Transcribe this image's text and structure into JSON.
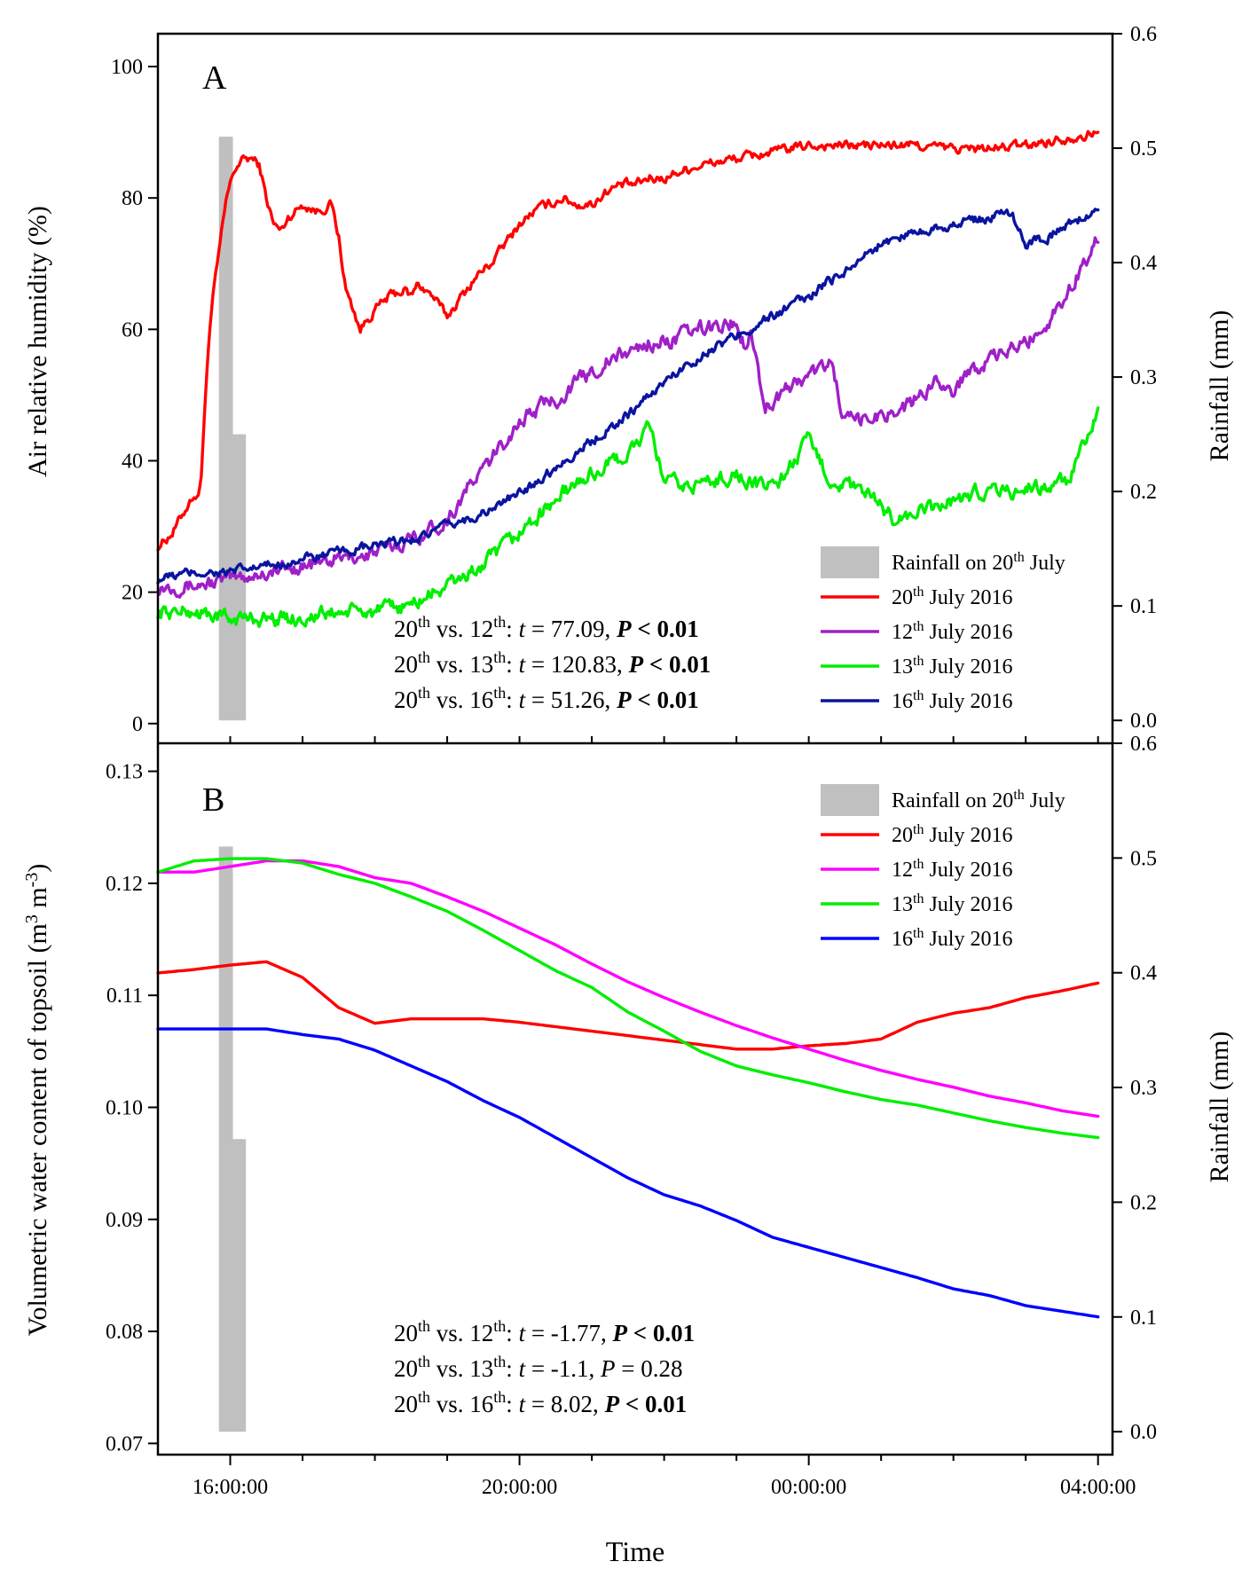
{
  "chart_data": [
    {
      "panel": "A",
      "type": "line",
      "ylabel": "Air relative humidity (%)",
      "ylim": [
        -3,
        105
      ],
      "yticks": [
        0,
        20,
        40,
        60,
        80,
        100
      ],
      "y2label": "Rainfall (mm)",
      "y2lim": [
        -0.02,
        0.6
      ],
      "y2ticks": [
        "0.0",
        "0.1",
        "0.2",
        "0.3",
        "0.4",
        "0.5",
        "0.6"
      ],
      "x_unit": "hours since 15:00 on 20 July",
      "xlim": [
        0,
        13.2
      ],
      "rainfall": {
        "name": "Rainfall on 20th July",
        "bars": [
          {
            "x": 0.88,
            "value": 0.51
          },
          {
            "x": 0.94,
            "value": 0.51
          },
          {
            "x": 1.0,
            "value": 0.51
          },
          {
            "x": 1.06,
            "value": 0.25
          },
          {
            "x": 1.12,
            "value": 0.25
          },
          {
            "x": 1.18,
            "value": 0.25
          }
        ]
      },
      "legend": [
        {
          "pre": "Rainfall on 20",
          "sup": "th",
          "post": " July",
          "kind": "bar",
          "color": "#c0c0c0"
        },
        {
          "pre": "20",
          "sup": "th",
          "post": " July 2016",
          "kind": "line",
          "color": "#ff0000"
        },
        {
          "pre": "12",
          "sup": "th",
          "post": " July 2016",
          "kind": "line",
          "color": "#a020c8"
        },
        {
          "pre": "13",
          "sup": "th",
          "post": " July 2016",
          "kind": "line",
          "color": "#00ee00"
        },
        {
          "pre": "16",
          "sup": "th",
          "post": " July 2016",
          "kind": "line",
          "color": "#0a14a0"
        }
      ],
      "series": [
        {
          "name": "20th July 2016",
          "color": "#ff0000",
          "x": [
            0,
            0.1,
            0.2,
            0.3,
            0.4,
            0.5,
            0.55,
            0.6,
            0.65,
            0.7,
            0.75,
            0.8,
            0.85,
            0.9,
            0.95,
            1.0,
            1.05,
            1.1,
            1.2,
            1.3,
            1.4,
            1.5,
            1.6,
            1.7,
            1.8,
            2.0,
            2.2,
            2.4,
            2.5,
            2.6,
            2.8,
            3.0,
            3.2,
            3.4,
            3.5,
            3.6,
            3.8,
            4.0,
            4.2,
            4.4,
            4.6,
            4.8,
            5.0,
            5.2,
            5.4,
            5.6,
            5.8,
            6.0,
            6.2,
            6.4,
            6.6,
            6.8,
            7.0,
            7.2,
            7.5,
            8.0,
            8.5,
            9.0,
            9.5,
            10.0,
            10.5,
            11.0,
            11.5,
            12.0,
            12.5,
            13.0
          ],
          "y": [
            27,
            28,
            29,
            31,
            33,
            35,
            34,
            38,
            48,
            58,
            64,
            68,
            72,
            76,
            80,
            82,
            84,
            85,
            86,
            86,
            85,
            80,
            76,
            75,
            77,
            79,
            78,
            79,
            74,
            66,
            60,
            63,
            65,
            66,
            65,
            67,
            65,
            62,
            65,
            68,
            70,
            73,
            76,
            78,
            79,
            80,
            79,
            79,
            81,
            82,
            82,
            83,
            83,
            84,
            85,
            86,
            87,
            88,
            88,
            88,
            88,
            87.5,
            87.5,
            88,
            89,
            90
          ],
          "amp": 0.5
        },
        {
          "name": "12th July 2016",
          "color": "#a020c8",
          "x": [
            0,
            0.5,
            1.0,
            1.5,
            2.0,
            2.5,
            3.0,
            3.5,
            4.0,
            4.3,
            4.6,
            5.0,
            5.4,
            5.6,
            5.8,
            6.2,
            6.6,
            6.8,
            7.0,
            7.5,
            8.0,
            8.1,
            8.2,
            8.4,
            8.7,
            9.0,
            9.3,
            9.5,
            9.7,
            10.0,
            10.3,
            10.6,
            10.8,
            11.0,
            11.2,
            11.5,
            11.8,
            12.0,
            12.3,
            12.6,
            13.0
          ],
          "y": [
            21,
            21,
            22,
            23,
            24,
            25,
            26,
            28,
            31,
            36,
            40,
            46,
            49,
            50,
            52,
            55,
            57,
            58,
            58,
            60,
            61,
            58,
            60,
            48,
            51,
            53,
            55,
            46,
            46,
            47,
            48,
            50,
            53,
            50,
            54,
            55,
            57,
            58,
            61,
            66,
            74
          ],
          "amp": 0.8
        },
        {
          "name": "13th July 2016",
          "color": "#00ee00",
          "x": [
            0,
            0.5,
            1.0,
            1.5,
            2.0,
            2.5,
            3.0,
            3.5,
            4.0,
            4.5,
            4.8,
            5.0,
            5.3,
            5.6,
            6.0,
            6.5,
            6.8,
            7.0,
            7.3,
            7.7,
            8.0,
            8.3,
            8.6,
            9.0,
            9.3,
            9.6,
            9.9,
            10.2,
            10.5,
            10.8,
            11.0,
            11.3,
            11.6,
            11.8,
            12.0,
            12.3,
            12.6,
            13.0
          ],
          "y": [
            17,
            17,
            16,
            16,
            16,
            17,
            17,
            18,
            21,
            24,
            27,
            29,
            32,
            35,
            38,
            41,
            45,
            37,
            36,
            37,
            38,
            36,
            37,
            43,
            37,
            36,
            34,
            31,
            32,
            33,
            34,
            35,
            36,
            35,
            36,
            36,
            37,
            47
          ],
          "amp": 0.8
        },
        {
          "name": "16th July 2016",
          "color": "#0a14a0",
          "x": [
            0,
            0.5,
            1.0,
            1.5,
            2.0,
            2.5,
            3.0,
            3.5,
            4.0,
            4.5,
            5.0,
            5.5,
            6.0,
            6.5,
            7.0,
            7.5,
            8.0,
            8.5,
            9.0,
            9.5,
            10.0,
            10.5,
            11.0,
            11.5,
            11.8,
            12.0,
            12.3,
            12.6,
            13.0
          ],
          "y": [
            22,
            23,
            23,
            24,
            25,
            26,
            27,
            28,
            30,
            32,
            35,
            39,
            43,
            47,
            52,
            56,
            59,
            62,
            65,
            69,
            73,
            75,
            76,
            77,
            78,
            73,
            74,
            76,
            78
          ],
          "amp": 0.5
        }
      ],
      "stats": [
        {
          "pre": "20",
          "s1": "th",
          "mid": " vs. 12",
          "s2": "th",
          "tail": ": ",
          "tvar": "t",
          "tval": " = 77.09, ",
          "pvar": "P",
          "pval": " < 0.01",
          "bold_t": false,
          "bold_p": true
        },
        {
          "pre": "20",
          "s1": "th",
          "mid": " vs. 13",
          "s2": "th",
          "tail": ": ",
          "tvar": "t",
          "tval": " = 120.83, ",
          "pvar": "P",
          "pval": " < 0.01",
          "bold_t": false,
          "bold_p": true
        },
        {
          "pre": "20",
          "s1": "th",
          "mid": " vs. 16",
          "s2": "th",
          "tail": ": ",
          "tvar": "t",
          "tval": " = 51.26, ",
          "pvar": "P",
          "pval": " < 0.01",
          "bold_t": false,
          "bold_p": true
        }
      ]
    },
    {
      "panel": "B",
      "type": "line",
      "ylabel": "Volumetric water content of topsoil (m",
      "ylabel_sup1": "3",
      "ylabel_mid": " m",
      "ylabel_sup2": "-3",
      "ylabel_end": ")",
      "ylim": [
        0.069,
        0.1325
      ],
      "yticks": [
        "0.07",
        "0.08",
        "0.09",
        "0.10",
        "0.11",
        "0.12",
        "0.13"
      ],
      "y2label": "Rainfall (mm)",
      "y2lim": [
        -0.02,
        0.6
      ],
      "y2ticks": [
        "0.0",
        "0.1",
        "0.2",
        "0.3",
        "0.4",
        "0.5",
        "0.6"
      ],
      "xlim": [
        0,
        13.2
      ],
      "rainfall": {
        "name": "Rainfall on 20th July",
        "bars": [
          {
            "x": 0.88,
            "value": 0.51
          },
          {
            "x": 0.94,
            "value": 0.51
          },
          {
            "x": 1.0,
            "value": 0.51
          },
          {
            "x": 1.06,
            "value": 0.255
          },
          {
            "x": 1.12,
            "value": 0.255
          },
          {
            "x": 1.18,
            "value": 0.255
          }
        ]
      },
      "legend": [
        {
          "pre": "Rainfall on 20",
          "sup": "th",
          "post": " July",
          "kind": "bar",
          "color": "#c0c0c0"
        },
        {
          "pre": "20",
          "sup": "th",
          "post": " July 2016",
          "kind": "line",
          "color": "#ff0000"
        },
        {
          "pre": "12",
          "sup": "th",
          "post": " July 2016",
          "kind": "line",
          "color": "#ff00ff"
        },
        {
          "pre": "13",
          "sup": "th",
          "post": " July 2016",
          "kind": "line",
          "color": "#00ee00"
        },
        {
          "pre": "16",
          "sup": "th",
          "post": " July 2016",
          "kind": "line",
          "color": "#0000ff"
        }
      ],
      "series": [
        {
          "name": "20th July 2016",
          "color": "#ff0000",
          "x": [
            0,
            0.5,
            1.0,
            1.5,
            2.0,
            2.5,
            3.0,
            3.5,
            4.0,
            4.5,
            5.0,
            5.5,
            6.0,
            6.5,
            7.0,
            7.5,
            8.0,
            8.5,
            9.0,
            9.5,
            10.0,
            10.5,
            11.0,
            11.5,
            12.0,
            12.5,
            13.0
          ],
          "y": [
            0.112,
            0.1123,
            0.1127,
            0.113,
            0.1116,
            0.1089,
            0.1075,
            0.1079,
            0.1079,
            0.1079,
            0.1076,
            0.1072,
            0.1068,
            0.1064,
            0.106,
            0.1056,
            0.1052,
            0.1052,
            0.1055,
            0.1057,
            0.1061,
            0.1076,
            0.1084,
            0.1089,
            0.1098,
            0.1104,
            0.1111
          ],
          "amp": 0
        },
        {
          "name": "12th July 2016",
          "color": "#ff00ff",
          "x": [
            0,
            0.5,
            1.0,
            1.5,
            2.0,
            2.5,
            3.0,
            3.5,
            4.0,
            4.5,
            5.0,
            5.5,
            6.0,
            6.5,
            7.0,
            7.5,
            8.0,
            8.5,
            9.0,
            9.5,
            10.0,
            10.5,
            11.0,
            11.5,
            12.0,
            12.5,
            13.0
          ],
          "y": [
            0.121,
            0.121,
            0.1215,
            0.122,
            0.122,
            0.1215,
            0.1205,
            0.12,
            0.1188,
            0.1175,
            0.116,
            0.1145,
            0.1128,
            0.1112,
            0.1098,
            0.1085,
            0.1073,
            0.1062,
            0.1052,
            0.1042,
            0.1033,
            0.1025,
            0.1018,
            0.101,
            0.1004,
            0.0997,
            0.0992
          ],
          "amp": 0
        },
        {
          "name": "13th July 2016",
          "color": "#00ee00",
          "x": [
            0,
            0.5,
            1.0,
            1.5,
            2.0,
            2.5,
            3.0,
            3.5,
            4.0,
            4.5,
            5.0,
            5.5,
            6.0,
            6.5,
            7.0,
            7.5,
            8.0,
            8.5,
            9.0,
            9.5,
            10.0,
            10.5,
            11.0,
            11.5,
            12.0,
            12.5,
            13.0
          ],
          "y": [
            0.121,
            0.122,
            0.1222,
            0.1222,
            0.1218,
            0.1208,
            0.12,
            0.1188,
            0.1175,
            0.1158,
            0.114,
            0.1122,
            0.1107,
            0.1085,
            0.1068,
            0.105,
            0.1037,
            0.1029,
            0.1022,
            0.1014,
            0.1007,
            0.1002,
            0.0995,
            0.0988,
            0.0982,
            0.0977,
            0.0973
          ],
          "amp": 0
        },
        {
          "name": "16th July 2016",
          "color": "#0000ff",
          "x": [
            0,
            0.5,
            1.0,
            1.5,
            2.0,
            2.5,
            3.0,
            3.5,
            4.0,
            4.5,
            5.0,
            5.5,
            6.0,
            6.5,
            7.0,
            7.5,
            8.0,
            8.5,
            9.0,
            9.5,
            10.0,
            10.5,
            11.0,
            11.5,
            12.0,
            12.5,
            13.0
          ],
          "y": [
            0.107,
            0.107,
            0.107,
            0.107,
            0.1065,
            0.1061,
            0.1051,
            0.1037,
            0.1023,
            0.1006,
            0.0991,
            0.0973,
            0.0955,
            0.0937,
            0.0922,
            0.0912,
            0.0899,
            0.0884,
            0.0875,
            0.0866,
            0.0857,
            0.0848,
            0.0838,
            0.0832,
            0.0823,
            0.0818,
            0.0813
          ],
          "amp": 0
        }
      ],
      "stats": [
        {
          "pre": "20",
          "s1": "th",
          "mid": " vs. 12",
          "s2": "th",
          "tail": ": ",
          "tvar": "t",
          "tval": " = -1.77, ",
          "pvar": "P",
          "pval": " < 0.01",
          "bold_t": false,
          "bold_p": true
        },
        {
          "pre": "20",
          "s1": "th",
          "mid": " vs. 13",
          "s2": "th",
          "tail": ": ",
          "tvar": "t",
          "tval": " = -1.1, ",
          "pvar": "P",
          "pval": " = 0.28",
          "bold_t": false,
          "bold_p": false
        },
        {
          "pre": "20",
          "s1": "th",
          "mid": " vs. 16",
          "s2": "th",
          "tail": ": ",
          "tvar": "t",
          "tval": " = 8.02, ",
          "pvar": "P",
          "pval": " < 0.01",
          "bold_t": false,
          "bold_p": true
        }
      ]
    }
  ],
  "xaxis": {
    "title": "Time",
    "ticks": [
      {
        "x": 1,
        "label": "16:00:00"
      },
      {
        "x": 5,
        "label": "20:00:00"
      },
      {
        "x": 9,
        "label": "00:00:00"
      },
      {
        "x": 13,
        "label": "04:00:00"
      }
    ],
    "minor_ticks": [
      2,
      3,
      4,
      6,
      7,
      8,
      10,
      11,
      12
    ]
  }
}
